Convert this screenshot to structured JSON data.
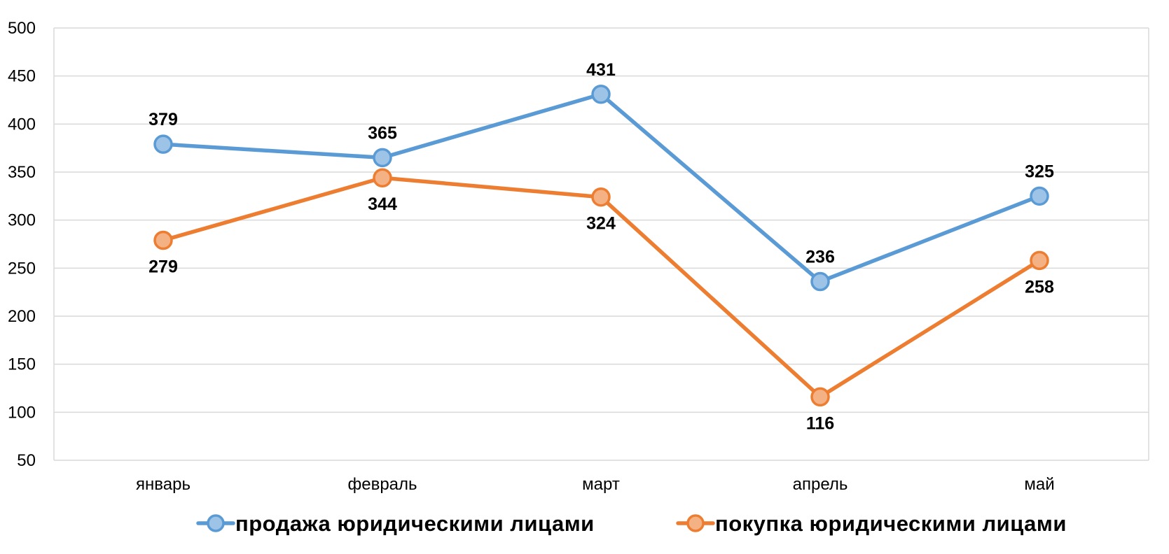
{
  "chart_data": {
    "type": "line",
    "title": "",
    "xlabel": "",
    "ylabel": "",
    "categories": [
      "январь",
      "февраль",
      "март",
      "апрель",
      "май"
    ],
    "ylim": [
      50,
      500
    ],
    "yticks": [
      50,
      100,
      150,
      200,
      250,
      300,
      350,
      400,
      450,
      500
    ],
    "grid": true,
    "legend_position": "bottom",
    "series": [
      {
        "name": "продажа юридическими лицами",
        "values": [
          379,
          365,
          431,
          236,
          325
        ],
        "color": "#5B9BD5",
        "marker_fill": "#9DC3E6",
        "label_position": "above"
      },
      {
        "name": "покупка юридическими лицами",
        "values": [
          279,
          344,
          324,
          116,
          258
        ],
        "color": "#ED7D31",
        "marker_fill": "#F4B183",
        "label_position": "below"
      }
    ]
  }
}
